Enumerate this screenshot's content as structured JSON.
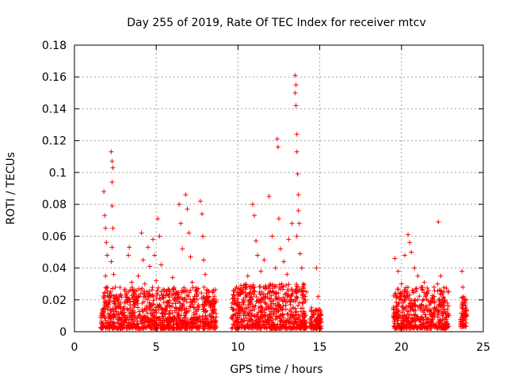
{
  "chart_data": {
    "type": "scatter",
    "title": "Day 255 of 2019, Rate Of TEC Index for receiver mtcv",
    "xlabel": "GPS time / hours",
    "ylabel": "ROTI / TECUs",
    "xlim": [
      0,
      25
    ],
    "ylim": [
      0,
      0.18
    ],
    "xticks": [
      0,
      5,
      10,
      15,
      20,
      25
    ],
    "xtick_labels": [
      "0",
      "5",
      "10",
      "15",
      "20",
      "25"
    ],
    "yticks": [
      0,
      0.02,
      0.04,
      0.06,
      0.08,
      0.1,
      0.12,
      0.14,
      0.16,
      0.18
    ],
    "ytick_labels": [
      "0",
      "0.02",
      "0.04",
      "0.06",
      "0.08",
      "0.1",
      "0.12",
      "0.14",
      "0.16",
      "0.18"
    ],
    "grid": true,
    "marker": "+",
    "color": "#ff0000",
    "series": [
      {
        "name": "ROTI",
        "points": [
          [
            1.8,
            0.088
          ],
          [
            1.85,
            0.073
          ],
          [
            1.9,
            0.065
          ],
          [
            1.95,
            0.056
          ],
          [
            2.0,
            0.048
          ],
          [
            1.9,
            0.035
          ],
          [
            2.0,
            0.028
          ],
          [
            2.1,
            0.022
          ],
          [
            1.8,
            0.015
          ],
          [
            2.05,
            0.011
          ],
          [
            2.25,
            0.113
          ],
          [
            2.3,
            0.107
          ],
          [
            2.35,
            0.103
          ],
          [
            2.3,
            0.094
          ],
          [
            2.3,
            0.079
          ],
          [
            2.35,
            0.065
          ],
          [
            2.3,
            0.053
          ],
          [
            2.25,
            0.044
          ],
          [
            2.4,
            0.036
          ],
          [
            2.5,
            0.028
          ],
          [
            2.6,
            0.021
          ],
          [
            2.7,
            0.015
          ],
          [
            2.9,
            0.012
          ],
          [
            3.1,
            0.018
          ],
          [
            3.3,
            0.025
          ],
          [
            3.3,
            0.048
          ],
          [
            3.35,
            0.053
          ],
          [
            3.5,
            0.031
          ],
          [
            3.7,
            0.022
          ],
          [
            3.9,
            0.035
          ],
          [
            4.1,
            0.062
          ],
          [
            4.2,
            0.045
          ],
          [
            4.3,
            0.03
          ],
          [
            4.5,
            0.053
          ],
          [
            4.6,
            0.041
          ],
          [
            4.8,
            0.058
          ],
          [
            4.9,
            0.048
          ],
          [
            5.0,
            0.032
          ],
          [
            5.1,
            0.071
          ],
          [
            5.2,
            0.06
          ],
          [
            5.3,
            0.042
          ],
          [
            5.5,
            0.026
          ],
          [
            5.7,
            0.018
          ],
          [
            6.0,
            0.034
          ],
          [
            6.2,
            0.024
          ],
          [
            6.4,
            0.08
          ],
          [
            6.5,
            0.068
          ],
          [
            6.6,
            0.052
          ],
          [
            6.8,
            0.086
          ],
          [
            6.9,
            0.077
          ],
          [
            7.0,
            0.062
          ],
          [
            7.1,
            0.047
          ],
          [
            7.2,
            0.031
          ],
          [
            7.5,
            0.025
          ],
          [
            7.7,
            0.082
          ],
          [
            7.8,
            0.074
          ],
          [
            7.85,
            0.06
          ],
          [
            7.9,
            0.045
          ],
          [
            8.0,
            0.036
          ],
          [
            8.1,
            0.026
          ],
          [
            8.3,
            0.018
          ],
          [
            8.5,
            0.012
          ],
          [
            2.8,
            0.008
          ],
          [
            3.5,
            0.01
          ],
          [
            4.4,
            0.009
          ],
          [
            5.6,
            0.007
          ],
          [
            6.3,
            0.011
          ],
          [
            7.4,
            0.008
          ],
          [
            8.6,
            0.006
          ],
          [
            10.0,
            0.018
          ],
          [
            10.3,
            0.025
          ],
          [
            10.6,
            0.035
          ],
          [
            10.9,
            0.08
          ],
          [
            11.0,
            0.073
          ],
          [
            11.1,
            0.057
          ],
          [
            11.2,
            0.048
          ],
          [
            11.4,
            0.038
          ],
          [
            11.6,
            0.045
          ],
          [
            11.9,
            0.085
          ],
          [
            12.1,
            0.06
          ],
          [
            12.3,
            0.04
          ],
          [
            12.4,
            0.121
          ],
          [
            12.45,
            0.116
          ],
          [
            12.5,
            0.071
          ],
          [
            12.6,
            0.052
          ],
          [
            12.8,
            0.044
          ],
          [
            13.0,
            0.036
          ],
          [
            13.1,
            0.058
          ],
          [
            13.3,
            0.068
          ],
          [
            13.5,
            0.161
          ],
          [
            13.55,
            0.155
          ],
          [
            13.5,
            0.15
          ],
          [
            13.55,
            0.142
          ],
          [
            13.6,
            0.124
          ],
          [
            13.6,
            0.113
          ],
          [
            13.65,
            0.099
          ],
          [
            13.7,
            0.086
          ],
          [
            13.7,
            0.076
          ],
          [
            13.75,
            0.068
          ],
          [
            13.6,
            0.06
          ],
          [
            13.8,
            0.049
          ],
          [
            13.9,
            0.04
          ],
          [
            14.0,
            0.03
          ],
          [
            14.2,
            0.025
          ],
          [
            14.5,
            0.015
          ],
          [
            14.8,
            0.04
          ],
          [
            14.9,
            0.022
          ],
          [
            10.2,
            0.008
          ],
          [
            11.0,
            0.01
          ],
          [
            12.0,
            0.009
          ],
          [
            13.0,
            0.011
          ],
          [
            14.0,
            0.007
          ],
          [
            14.9,
            0.006
          ],
          [
            19.6,
            0.046
          ],
          [
            19.8,
            0.038
          ],
          [
            20.0,
            0.03
          ],
          [
            20.2,
            0.048
          ],
          [
            20.4,
            0.061
          ],
          [
            20.5,
            0.056
          ],
          [
            20.6,
            0.05
          ],
          [
            20.8,
            0.04
          ],
          [
            21.0,
            0.035
          ],
          [
            21.2,
            0.028
          ],
          [
            21.4,
            0.031
          ],
          [
            21.6,
            0.024
          ],
          [
            21.8,
            0.018
          ],
          [
            22.0,
            0.022
          ],
          [
            22.2,
            0.03
          ],
          [
            22.25,
            0.069
          ],
          [
            22.4,
            0.035
          ],
          [
            22.6,
            0.025
          ],
          [
            22.8,
            0.018
          ],
          [
            19.7,
            0.01
          ],
          [
            20.6,
            0.008
          ],
          [
            21.5,
            0.009
          ],
          [
            22.5,
            0.007
          ],
          [
            22.9,
            0.01
          ],
          [
            23.7,
            0.038
          ],
          [
            23.75,
            0.028
          ],
          [
            23.8,
            0.022
          ],
          [
            23.9,
            0.018
          ],
          [
            23.85,
            0.012
          ],
          [
            23.7,
            0.008
          ],
          [
            23.95,
            0.015
          ]
        ]
      }
    ],
    "clusters": [
      {
        "x_start": 1.6,
        "x_end": 8.7,
        "y_min": 0.002,
        "y_max": 0.028
      },
      {
        "x_start": 9.6,
        "x_end": 14.2,
        "y_min": 0.002,
        "y_max": 0.03
      },
      {
        "x_start": 14.4,
        "x_end": 15.1,
        "y_min": 0.002,
        "y_max": 0.014
      },
      {
        "x_start": 19.5,
        "x_end": 22.9,
        "y_min": 0.002,
        "y_max": 0.028
      },
      {
        "x_start": 23.6,
        "x_end": 24.0,
        "y_min": 0.003,
        "y_max": 0.022
      }
    ]
  }
}
